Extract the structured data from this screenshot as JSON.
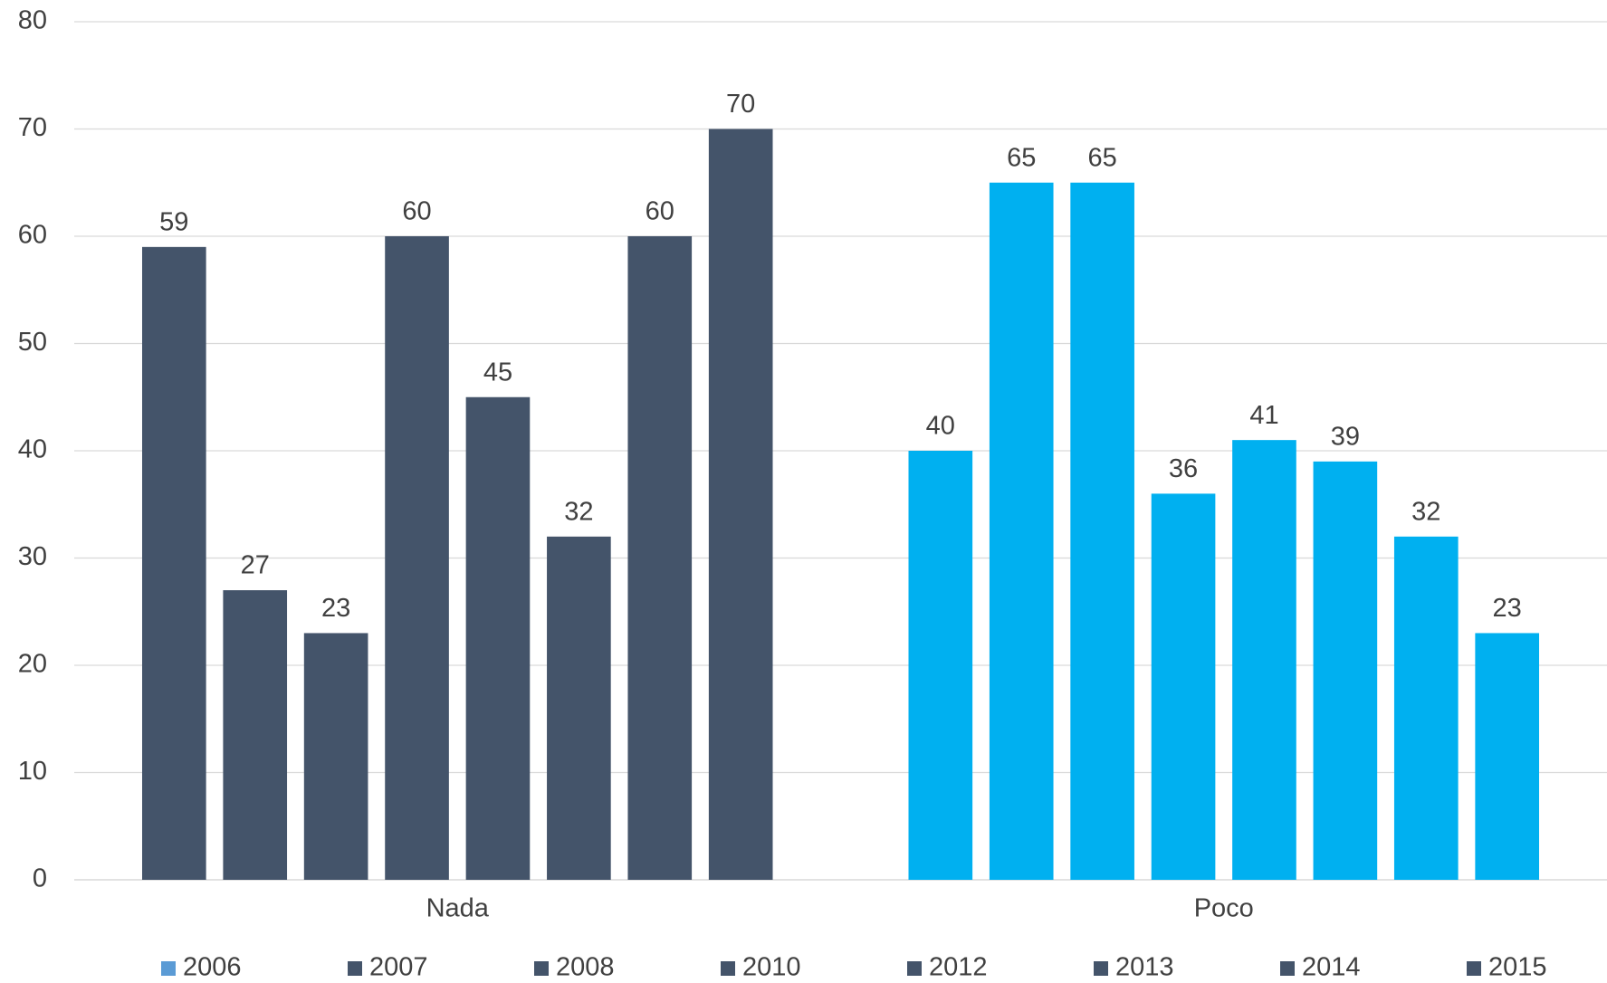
{
  "chart_data": {
    "type": "bar",
    "categories": [
      "Nada",
      "Poco"
    ],
    "category_colors": [
      "#44546a",
      "#00b0f0"
    ],
    "series": [
      {
        "name": "2006",
        "color": "#5b9bd5",
        "values": [
          59,
          40
        ]
      },
      {
        "name": "2007",
        "color": "#44546a",
        "values": [
          27,
          65
        ]
      },
      {
        "name": "2008",
        "color": "#44546a",
        "values": [
          23,
          65
        ]
      },
      {
        "name": "2010",
        "color": "#44546a",
        "values": [
          60,
          36
        ]
      },
      {
        "name": "2012",
        "color": "#44546a",
        "values": [
          45,
          41
        ]
      },
      {
        "name": "2013",
        "color": "#44546a",
        "values": [
          32,
          39
        ]
      },
      {
        "name": "2014",
        "color": "#44546a",
        "values": [
          60,
          32
        ]
      },
      {
        "name": "2015",
        "color": "#44546a",
        "values": [
          70,
          23
        ]
      }
    ],
    "ylim": [
      0,
      80
    ],
    "yticks": [
      0,
      10,
      20,
      30,
      40,
      50,
      60,
      70,
      80
    ],
    "grid": true,
    "legend": "bottom"
  }
}
